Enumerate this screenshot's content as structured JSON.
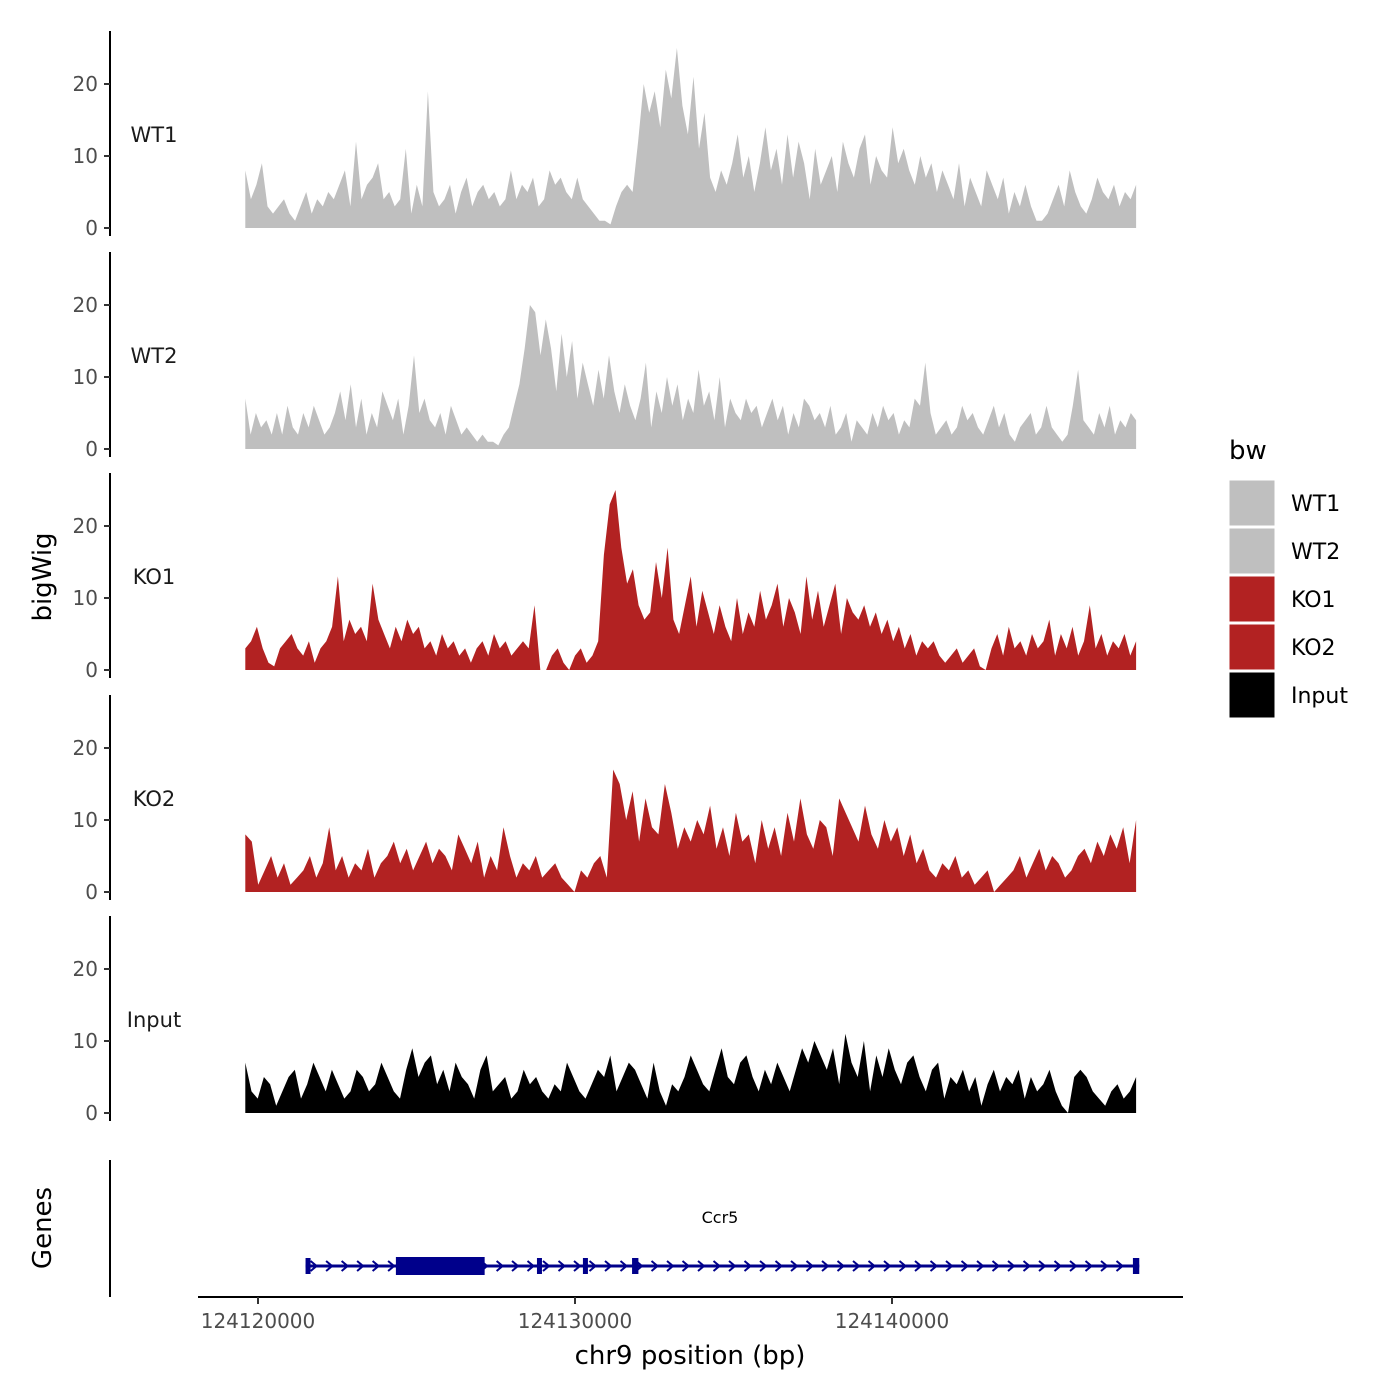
{
  "chart_data": {
    "type": "area",
    "title": "",
    "ylabel": "bigWig",
    "xlabel": "chr9 position (bp)",
    "genes_label": "Genes",
    "xlim": [
      124118200,
      124148400
    ],
    "ylim": [
      0,
      27
    ],
    "y_ticks": [
      {
        "value": 0,
        "label": "0"
      },
      {
        "value": 10,
        "label": "10"
      },
      {
        "value": 20,
        "label": "20"
      }
    ],
    "x_ticks": [
      {
        "value": 124120000,
        "label": "124120000"
      },
      {
        "value": 124130000,
        "label": "124130000"
      },
      {
        "value": 124140000,
        "label": "124140000"
      }
    ],
    "track_x_range": [
      124119600,
      124147700
    ],
    "legend": {
      "title": "bw",
      "entries": [
        {
          "label": "WT1",
          "color": "#bfbfbf"
        },
        {
          "label": "WT2",
          "color": "#bfbfbf"
        },
        {
          "label": "KO1",
          "color": "#b22222"
        },
        {
          "label": "KO2",
          "color": "#b22222"
        },
        {
          "label": "Input",
          "color": "#000000"
        }
      ]
    },
    "series": [
      {
        "name": "WT1",
        "color": "#bfbfbf",
        "values": [
          8,
          4,
          6,
          9,
          3,
          2,
          3,
          4,
          2,
          1,
          3,
          5,
          2,
          4,
          3,
          5,
          4,
          6,
          8,
          3,
          12,
          4,
          6,
          7,
          9,
          4,
          5,
          3,
          4,
          11,
          2,
          6,
          3,
          19,
          5,
          3,
          4,
          6,
          2,
          5,
          7,
          3,
          5,
          6,
          4,
          5,
          3,
          4,
          8,
          4,
          6,
          5,
          7,
          3,
          4,
          8,
          6,
          7,
          5,
          4,
          7,
          4,
          3,
          2,
          1,
          1,
          0.5,
          3,
          5,
          6,
          5,
          12,
          20,
          16,
          19,
          14,
          22,
          18,
          25,
          17,
          13,
          21,
          11,
          16,
          7,
          5,
          8,
          6,
          9,
          13,
          7,
          10,
          5,
          9,
          14,
          8,
          11,
          6,
          13,
          7,
          12,
          9,
          4,
          11,
          6,
          8,
          10,
          5,
          12,
          9,
          7,
          11,
          13,
          6,
          10,
          8,
          7,
          14,
          9,
          11,
          8,
          6,
          10,
          7,
          9,
          5,
          8,
          6,
          4,
          9,
          3,
          7,
          5,
          3,
          8,
          6,
          4,
          7,
          2,
          5,
          3,
          6,
          3,
          1,
          1,
          2,
          4,
          6,
          3,
          8,
          5,
          3,
          2,
          4,
          7,
          5,
          4,
          6,
          3,
          5,
          4,
          6
        ]
      },
      {
        "name": "WT2",
        "color": "#bfbfbf",
        "values": [
          7,
          2,
          5,
          3,
          4,
          2,
          5,
          2,
          6,
          3,
          2,
          5,
          3,
          6,
          4,
          2,
          3,
          5,
          8,
          4,
          9,
          3,
          7,
          2,
          5,
          3,
          8,
          6,
          4,
          7,
          2,
          6,
          13,
          5,
          7,
          4,
          3,
          5,
          2,
          6,
          4,
          2,
          3,
          2,
          1,
          2,
          1,
          1,
          0.5,
          2,
          3,
          6,
          9,
          14,
          20,
          19,
          13,
          18,
          14,
          8,
          16,
          10,
          15,
          7,
          12,
          9,
          6,
          11,
          7,
          13,
          8,
          5,
          9,
          6,
          4,
          7,
          12,
          3,
          8,
          5,
          10,
          6,
          9,
          4,
          7,
          5,
          11,
          6,
          8,
          4,
          10,
          3,
          7,
          5,
          4,
          7,
          5,
          6,
          3,
          5,
          7,
          4,
          6,
          2,
          5,
          3,
          7,
          6,
          4,
          5,
          3,
          6,
          2,
          3,
          5,
          1,
          4,
          3,
          2,
          5,
          3,
          6,
          4,
          5,
          2,
          4,
          3,
          7,
          6,
          12,
          5,
          2,
          3,
          4,
          2,
          3,
          6,
          4,
          5,
          3,
          2,
          4,
          6,
          3,
          5,
          2,
          1,
          3,
          4,
          5,
          2,
          3,
          6,
          3,
          2,
          1,
          2,
          6,
          11,
          4,
          3,
          2,
          5,
          3,
          6,
          2,
          4,
          3,
          5,
          4
        ]
      },
      {
        "name": "KO1",
        "color": "#b22222",
        "values": [
          3,
          4,
          6,
          3,
          1,
          0.5,
          3,
          4,
          5,
          3,
          2,
          4,
          1,
          3,
          4,
          6,
          13,
          4,
          7,
          5,
          6,
          4,
          12,
          7,
          5,
          3,
          6,
          4,
          7,
          5,
          6,
          3,
          4,
          2,
          5,
          3,
          4,
          2,
          3,
          1,
          3,
          4,
          2,
          5,
          3,
          4,
          2,
          3,
          4,
          3,
          9,
          0,
          0,
          2,
          3,
          1,
          0,
          2,
          3,
          1,
          2,
          4,
          16,
          23,
          25,
          17,
          12,
          14,
          9,
          7,
          8,
          15,
          10,
          17,
          7,
          5,
          9,
          13,
          6,
          11,
          8,
          5,
          9,
          6,
          4,
          10,
          5,
          8,
          6,
          11,
          7,
          9,
          12,
          6,
          10,
          8,
          5,
          13,
          7,
          11,
          6,
          9,
          12,
          5,
          10,
          8,
          7,
          9,
          6,
          8,
          5,
          7,
          4,
          6,
          3,
          5,
          2,
          4,
          3,
          4,
          2,
          1,
          2,
          3,
          1,
          2,
          3,
          0.5,
          0,
          3,
          5,
          2,
          6,
          3,
          4,
          2,
          5,
          3,
          4,
          7,
          2,
          5,
          3,
          6,
          2,
          4,
          9,
          3,
          5,
          2,
          4,
          3,
          5,
          2,
          4
        ]
      },
      {
        "name": "KO2",
        "color": "#b22222",
        "values": [
          8,
          7,
          1,
          3,
          5,
          2,
          4,
          1,
          2,
          3,
          5,
          2,
          4,
          9,
          3,
          5,
          2,
          4,
          3,
          6,
          2,
          4,
          5,
          7,
          4,
          6,
          3,
          5,
          7,
          4,
          6,
          5,
          3,
          8,
          6,
          4,
          7,
          2,
          5,
          3,
          9,
          5,
          2,
          4,
          3,
          5,
          2,
          3,
          4,
          2,
          1,
          0,
          3,
          2,
          4,
          5,
          2,
          17,
          15,
          10,
          14,
          7,
          13,
          9,
          8,
          15,
          11,
          6,
          9,
          7,
          10,
          8,
          12,
          6,
          9,
          5,
          11,
          7,
          8,
          4,
          10,
          6,
          9,
          5,
          11,
          7,
          13,
          8,
          6,
          10,
          9,
          5,
          13,
          11,
          9,
          7,
          12,
          8,
          6,
          10,
          7,
          9,
          5,
          8,
          4,
          6,
          3,
          2,
          4,
          3,
          5,
          2,
          3,
          1,
          2,
          3,
          0,
          1,
          2,
          3,
          5,
          2,
          4,
          6,
          3,
          5,
          4,
          2,
          3,
          5,
          6,
          4,
          7,
          5,
          8,
          6,
          9,
          4,
          10
        ]
      },
      {
        "name": "Input",
        "color": "#000000",
        "values": [
          7,
          3,
          2,
          5,
          4,
          1,
          3,
          5,
          6,
          2,
          4,
          7,
          5,
          3,
          6,
          4,
          2,
          3,
          6,
          5,
          3,
          4,
          7,
          5,
          3,
          2,
          6,
          9,
          5,
          7,
          8,
          4,
          6,
          3,
          7,
          5,
          4,
          2,
          6,
          8,
          3,
          4,
          5,
          2,
          3,
          6,
          4,
          5,
          3,
          2,
          4,
          3,
          7,
          5,
          3,
          2,
          4,
          6,
          5,
          8,
          3,
          5,
          7,
          6,
          4,
          2,
          7,
          3,
          1,
          4,
          3,
          5,
          8,
          6,
          4,
          3,
          6,
          9,
          5,
          4,
          7,
          8,
          5,
          3,
          6,
          4,
          7,
          5,
          3,
          6,
          9,
          7,
          10,
          8,
          6,
          9,
          4,
          11,
          7,
          5,
          10,
          3,
          8,
          5,
          9,
          6,
          4,
          7,
          8,
          5,
          3,
          6,
          7,
          2,
          5,
          4,
          6,
          3,
          5,
          1,
          4,
          6,
          3,
          5,
          4,
          6,
          2,
          5,
          3,
          4,
          6,
          3,
          1,
          0,
          5,
          6,
          5,
          3,
          2,
          1,
          3,
          4,
          2,
          3,
          5
        ]
      }
    ],
    "gene": {
      "name": "Ccr5",
      "color": "#00008b",
      "strand": "+",
      "start": 124121500,
      "end": 124147800,
      "exons": [
        {
          "start": 124121500,
          "end": 124121600,
          "type": "utr"
        },
        {
          "start": 124124350,
          "end": 124127150,
          "type": "cds"
        },
        {
          "start": 124128800,
          "end": 124128950,
          "type": "utr"
        },
        {
          "start": 124130250,
          "end": 124130400,
          "type": "utr"
        },
        {
          "start": 124131800,
          "end": 124132000,
          "type": "utr"
        },
        {
          "start": 124147600,
          "end": 124147800,
          "type": "utr"
        }
      ]
    }
  }
}
